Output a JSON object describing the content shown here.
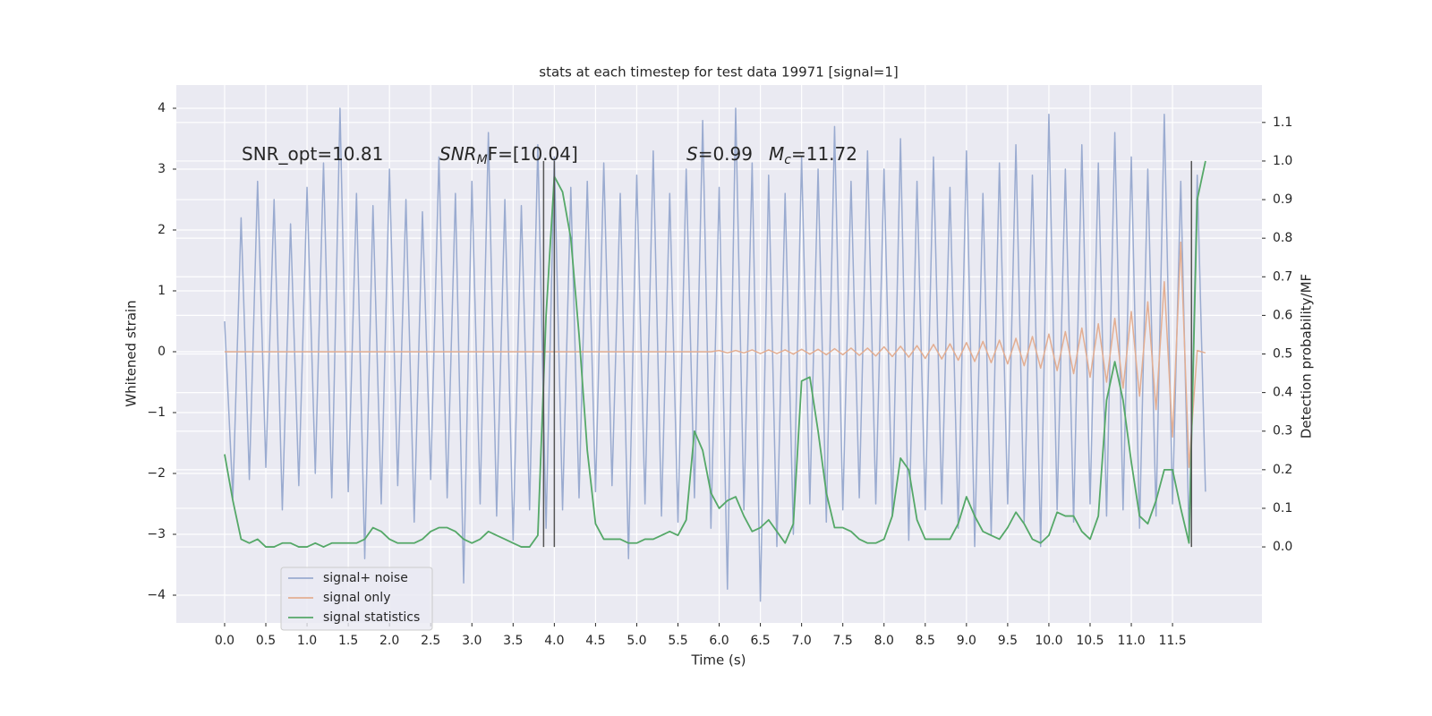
{
  "chart_data": {
    "type": "line",
    "title": "stats at each timestep for test data 19971 [signal=1]",
    "xlabel": "Time (s)",
    "ylabel": "Whitened strain",
    "y2label": "Detection probability/MF",
    "annotations": [
      {
        "text": "SNR_opt=10.81"
      },
      {
        "base": "SNR",
        "sub": "M",
        "tail": "F=[10.04]"
      },
      {
        "base": "S",
        "tail": "=0.99"
      },
      {
        "base": "M",
        "sub": "c",
        "tail": "=11.72"
      }
    ],
    "x": [
      0,
      0.1,
      0.2,
      0.3,
      0.4,
      0.5,
      0.6,
      0.7,
      0.8,
      0.9,
      1,
      1.1,
      1.2,
      1.3,
      1.4,
      1.5,
      1.6,
      1.7,
      1.8,
      1.9,
      2,
      2.1,
      2.2,
      2.3,
      2.4,
      2.5,
      2.6,
      2.7,
      2.8,
      2.9,
      3,
      3.1,
      3.2,
      3.3,
      3.4,
      3.5,
      3.6,
      3.7,
      3.8,
      3.9,
      4,
      4.1,
      4.2,
      4.3,
      4.4,
      4.5,
      4.6,
      4.7,
      4.8,
      4.9,
      5,
      5.1,
      5.2,
      5.3,
      5.4,
      5.5,
      5.6,
      5.7,
      5.8,
      5.9,
      6,
      6.1,
      6.2,
      6.3,
      6.4,
      6.5,
      6.6,
      6.7,
      6.8,
      6.9,
      7,
      7.1,
      7.2,
      7.3,
      7.4,
      7.5,
      7.6,
      7.7,
      7.8,
      7.9,
      8,
      8.1,
      8.2,
      8.3,
      8.4,
      8.5,
      8.6,
      8.7,
      8.8,
      8.9,
      9,
      9.1,
      9.2,
      9.3,
      9.4,
      9.5,
      9.6,
      9.7,
      9.8,
      9.9,
      10,
      10.1,
      10.2,
      10.3,
      10.4,
      10.5,
      10.6,
      10.7,
      10.8,
      10.9,
      11,
      11.1,
      11.2,
      11.3,
      11.4,
      11.5,
      11.6,
      11.7,
      11.8,
      11.9
    ],
    "series": [
      {
        "name": "signal+ noise",
        "color": "#9aabd0",
        "values": [
          0.5,
          -2.4,
          2.2,
          -2.1,
          2.8,
          -1.9,
          2.5,
          -2.6,
          2.1,
          -2.2,
          2.7,
          -2.0,
          3.1,
          -2.4,
          4.0,
          -2.3,
          2.6,
          -3.4,
          2.4,
          -2.5,
          3.0,
          -2.2,
          2.5,
          -2.8,
          2.3,
          -2.1,
          3.2,
          -2.4,
          2.6,
          -3.8,
          2.8,
          -2.5,
          3.6,
          -2.7,
          2.5,
          -3.1,
          2.4,
          -2.6,
          3.4,
          -2.9,
          3.2,
          -2.6,
          2.7,
          -2.4,
          2.8,
          -2.3,
          3.1,
          -2.2,
          2.6,
          -3.4,
          2.9,
          -2.5,
          3.3,
          -2.7,
          2.6,
          -2.8,
          3.0,
          -2.4,
          3.8,
          -2.9,
          2.7,
          -3.9,
          4.0,
          -2.6,
          3.1,
          -4.1,
          2.9,
          -3.2,
          2.6,
          -3.0,
          3.2,
          -2.5,
          3.0,
          -2.8,
          3.7,
          -2.6,
          2.8,
          -2.4,
          3.3,
          -2.5,
          3.0,
          -2.7,
          3.5,
          -3.1,
          2.8,
          -2.6,
          3.2,
          -2.5,
          2.7,
          -2.9,
          3.3,
          -3.2,
          2.6,
          -3.0,
          3.1,
          -2.5,
          3.4,
          -2.8,
          2.9,
          -3.2,
          3.9,
          -2.6,
          3.0,
          -2.8,
          3.4,
          -2.5,
          3.1,
          -2.7,
          3.6,
          -2.6,
          3.2,
          -2.9,
          3.0,
          -2.7,
          3.9,
          -2.5,
          2.8,
          -3.0,
          2.9,
          -2.3
        ]
      },
      {
        "name": "signal only",
        "color": "#e3ae92",
        "values": [
          0,
          0,
          0,
          0,
          0,
          0,
          0,
          0,
          0,
          0,
          0,
          0,
          0,
          0,
          0,
          0,
          0,
          0,
          0,
          0,
          0,
          0,
          0,
          0,
          0,
          0,
          0,
          0,
          0,
          0,
          0,
          0,
          0,
          0,
          0,
          0,
          0,
          0,
          0,
          0,
          0,
          0,
          0,
          0,
          0,
          0,
          0,
          0,
          0,
          0,
          0,
          0,
          0,
          0,
          0,
          0,
          0,
          0,
          0,
          0,
          0.02,
          -0.02,
          0.02,
          -0.02,
          0.03,
          -0.03,
          0.03,
          -0.03,
          0.03,
          -0.04,
          0.04,
          -0.04,
          0.04,
          -0.05,
          0.05,
          -0.05,
          0.06,
          -0.06,
          0.06,
          -0.07,
          0.08,
          -0.08,
          0.09,
          -0.09,
          0.1,
          -0.11,
          0.12,
          -0.12,
          0.13,
          -0.14,
          0.15,
          -0.16,
          0.17,
          -0.18,
          0.19,
          -0.2,
          0.22,
          -0.23,
          0.25,
          -0.27,
          0.29,
          -0.31,
          0.33,
          -0.36,
          0.39,
          -0.42,
          0.46,
          -0.5,
          0.55,
          -0.6,
          0.66,
          -0.73,
          0.82,
          -0.95,
          1.15,
          -1.4,
          1.8,
          -1.9,
          0.02,
          -0.02
        ]
      },
      {
        "name": "signal statistics",
        "color": "#55a868",
        "axis": "y2",
        "values": [
          0.24,
          0.12,
          0.02,
          0.01,
          0.02,
          0.0,
          0.0,
          0.01,
          0.01,
          0.0,
          0.0,
          0.01,
          0.0,
          0.01,
          0.01,
          0.01,
          0.01,
          0.02,
          0.05,
          0.04,
          0.02,
          0.01,
          0.01,
          0.01,
          0.02,
          0.04,
          0.05,
          0.05,
          0.04,
          0.02,
          0.01,
          0.02,
          0.04,
          0.03,
          0.02,
          0.01,
          0.0,
          0.0,
          0.03,
          0.6,
          0.96,
          0.92,
          0.8,
          0.55,
          0.25,
          0.06,
          0.02,
          0.02,
          0.02,
          0.01,
          0.01,
          0.02,
          0.02,
          0.03,
          0.04,
          0.03,
          0.07,
          0.3,
          0.25,
          0.14,
          0.1,
          0.12,
          0.13,
          0.08,
          0.04,
          0.05,
          0.07,
          0.04,
          0.01,
          0.06,
          0.43,
          0.44,
          0.3,
          0.14,
          0.05,
          0.05,
          0.04,
          0.02,
          0.01,
          0.01,
          0.02,
          0.08,
          0.23,
          0.2,
          0.07,
          0.02,
          0.02,
          0.02,
          0.02,
          0.06,
          0.13,
          0.08,
          0.04,
          0.03,
          0.02,
          0.05,
          0.09,
          0.06,
          0.02,
          0.01,
          0.03,
          0.09,
          0.08,
          0.08,
          0.04,
          0.02,
          0.08,
          0.38,
          0.48,
          0.38,
          0.22,
          0.08,
          0.06,
          0.12,
          0.2,
          0.2,
          0.1,
          0.01,
          0.9,
          1.0
        ]
      }
    ],
    "vlines": {
      "x": [
        3.87,
        4.0,
        11.73
      ],
      "y2min": 0,
      "y2max": 1,
      "color": "#555555"
    },
    "xlim": [
      -0.586,
      12.585
    ],
    "ylim": [
      -4.456,
      4.382
    ],
    "y2lim": [
      -0.197,
      1.197
    ],
    "xticks": [
      {
        "value": 0,
        "label": "0.0"
      },
      {
        "value": 0.5,
        "label": "0.5"
      },
      {
        "value": 1,
        "label": "1.0"
      },
      {
        "value": 1.5,
        "label": "1.5"
      },
      {
        "value": 2,
        "label": "2.0"
      },
      {
        "value": 2.5,
        "label": "2.5"
      },
      {
        "value": 3,
        "label": "3.0"
      },
      {
        "value": 3.5,
        "label": "3.5"
      },
      {
        "value": 4,
        "label": "4.0"
      },
      {
        "value": 4.5,
        "label": "4.5"
      },
      {
        "value": 5,
        "label": "5.0"
      },
      {
        "value": 5.5,
        "label": "5.5"
      },
      {
        "value": 6,
        "label": "6.0"
      },
      {
        "value": 6.5,
        "label": "6.5"
      },
      {
        "value": 7,
        "label": "7.0"
      },
      {
        "value": 7.5,
        "label": "7.5"
      },
      {
        "value": 8,
        "label": "8.0"
      },
      {
        "value": 8.5,
        "label": "8.5"
      },
      {
        "value": 9,
        "label": "9.0"
      },
      {
        "value": 9.5,
        "label": "9.5"
      },
      {
        "value": 10,
        "label": "10.0"
      },
      {
        "value": 10.5,
        "label": "10.5"
      },
      {
        "value": 11,
        "label": "11.0"
      },
      {
        "value": 11.5,
        "label": "11.5"
      }
    ],
    "yticks": [
      {
        "value": -4,
        "label": "−4"
      },
      {
        "value": -3,
        "label": "−3"
      },
      {
        "value": -2,
        "label": "−2"
      },
      {
        "value": -1,
        "label": "−1"
      },
      0,
      1,
      2,
      3,
      4
    ],
    "y2ticks": [
      {
        "value": 0,
        "label": "0.0"
      },
      {
        "value": 0.1,
        "label": "0.1"
      },
      {
        "value": 0.2,
        "label": "0.2"
      },
      {
        "value": 0.3,
        "label": "0.3"
      },
      {
        "value": 0.4,
        "label": "0.4"
      },
      {
        "value": 0.5,
        "label": "0.5"
      },
      {
        "value": 0.6,
        "label": "0.6"
      },
      {
        "value": 0.7,
        "label": "0.7"
      },
      {
        "value": 0.8,
        "label": "0.8"
      },
      {
        "value": 0.9,
        "label": "0.9"
      },
      {
        "value": 1,
        "label": "1.0"
      },
      {
        "value": 1.1,
        "label": "1.1"
      }
    ],
    "grid": true,
    "legend": "lower left"
  }
}
